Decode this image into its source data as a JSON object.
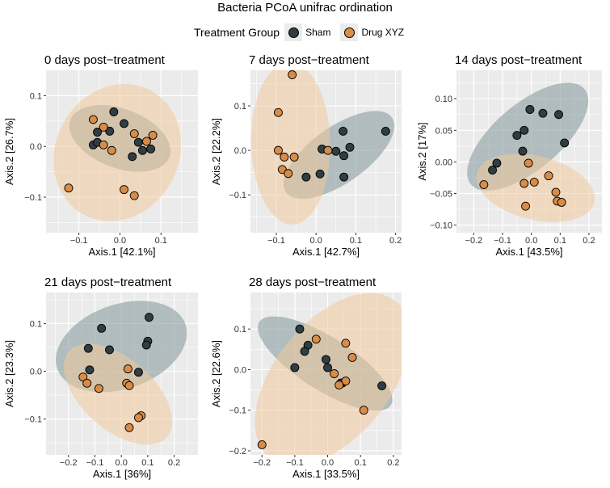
{
  "figure_title": "Bacteria PCoA unifrac ordination",
  "legend": {
    "title": "Treatment Group",
    "entries": [
      {
        "label": "Sham",
        "color": "#2f3e42"
      },
      {
        "label": "Drug XYZ",
        "color": "#d98c46"
      }
    ]
  },
  "colors": {
    "panel_background": "#ebebeb",
    "grid": "#ffffff",
    "sham_fill": "#2f3e42",
    "drug_fill": "#d98c46",
    "sham_ellipse": "#7f9697",
    "drug_ellipse": "#f0c89c"
  },
  "chart_data": [
    {
      "type": "scatter",
      "title": "0 days post−treatment",
      "xlabel": "Axis.1   [42.1%]",
      "ylabel": "Axis.2   [26.7%]",
      "xlim": [
        -0.18,
        0.19
      ],
      "ylim": [
        -0.17,
        0.15
      ],
      "xticks": [
        -0.1,
        0.0,
        0.1
      ],
      "xtick_labels": [
        "−0.1",
        "0.0",
        "0.1"
      ],
      "yticks": [
        -0.1,
        0.0,
        0.1
      ],
      "ytick_labels": [
        "−0.1",
        "0.0",
        "0.1"
      ],
      "grid": true,
      "series": [
        {
          "name": "Sham",
          "points": [
            [
              -0.015,
              0.068
            ],
            [
              0.01,
              0.045
            ],
            [
              -0.055,
              0.028
            ],
            [
              -0.025,
              0.03
            ],
            [
              -0.065,
              0.003
            ],
            [
              -0.055,
              0.008
            ],
            [
              0.045,
              0.008
            ],
            [
              0.03,
              -0.02
            ],
            [
              0.055,
              -0.008
            ],
            [
              0.075,
              -0.005
            ]
          ]
        },
        {
          "name": "Drug XYZ",
          "points": [
            [
              -0.065,
              0.053
            ],
            [
              -0.04,
              0.038
            ],
            [
              -0.04,
              0.003
            ],
            [
              -0.02,
              -0.008
            ],
            [
              0.035,
              0.025
            ],
            [
              0.065,
              0.01
            ],
            [
              0.08,
              0.022
            ],
            [
              -0.125,
              -0.082
            ],
            [
              0.01,
              -0.085
            ],
            [
              0.035,
              -0.097
            ]
          ]
        }
      ]
    },
    {
      "type": "scatter",
      "title": "7 days post−treatment",
      "xlabel": "Axis.1   [42.7%]",
      "ylabel": "Axis.2   [22.2%]",
      "xlim": [
        -0.165,
        0.215
      ],
      "ylim": [
        -0.185,
        0.18
      ],
      "xticks": [
        -0.1,
        0.0,
        0.1,
        0.2
      ],
      "xtick_labels": [
        "−0.1",
        "0.0",
        "0.1",
        "0.2"
      ],
      "yticks": [
        -0.1,
        0.0,
        0.1
      ],
      "ytick_labels": [
        "−0.1",
        "0.0",
        "0.1"
      ],
      "grid": true,
      "series": [
        {
          "name": "Sham",
          "points": [
            [
              0.068,
              0.043
            ],
            [
              0.175,
              0.043
            ],
            [
              0.015,
              0.003
            ],
            [
              0.05,
              -0.002
            ],
            [
              0.085,
              0.007
            ],
            [
              0.07,
              -0.012
            ],
            [
              0.01,
              -0.053
            ],
            [
              -0.025,
              -0.06
            ],
            [
              0.07,
              -0.06
            ]
          ]
        },
        {
          "name": "Drug XYZ",
          "points": [
            [
              -0.06,
              0.17
            ],
            [
              -0.095,
              0.085
            ],
            [
              -0.095,
              0.0
            ],
            [
              -0.08,
              -0.015
            ],
            [
              -0.055,
              -0.015
            ],
            [
              -0.085,
              -0.043
            ],
            [
              -0.07,
              -0.052
            ],
            [
              0.03,
              0.0
            ]
          ]
        }
      ]
    },
    {
      "type": "scatter",
      "title": "14 days post−treatment",
      "xlabel": "Axis.1   [43.5%]",
      "ylabel": "Axis.2   [17%]",
      "xlim": [
        -0.26,
        0.245
      ],
      "ylim": [
        -0.112,
        0.145
      ],
      "xticks": [
        -0.2,
        -0.1,
        0.0,
        0.1,
        0.2
      ],
      "xtick_labels": [
        "−0.2",
        "−0.1",
        "0.0",
        "0.1",
        "0.2"
      ],
      "yticks": [
        -0.1,
        -0.05,
        0.0,
        0.05,
        0.1
      ],
      "ytick_labels": [
        "−0.10",
        "−0.05",
        "0.00",
        "0.05",
        "0.10"
      ],
      "grid": true,
      "series": [
        {
          "name": "Sham",
          "points": [
            [
              -0.005,
              0.083
            ],
            [
              0.04,
              0.077
            ],
            [
              0.095,
              0.075
            ],
            [
              -0.025,
              0.05
            ],
            [
              -0.05,
              0.042
            ],
            [
              0.115,
              0.03
            ],
            [
              -0.03,
              0.017
            ],
            [
              -0.12,
              -0.002
            ],
            [
              -0.135,
              -0.013
            ]
          ]
        },
        {
          "name": "Drug XYZ",
          "points": [
            [
              -0.01,
              -0.002
            ],
            [
              0.06,
              -0.022
            ],
            [
              -0.165,
              -0.036
            ],
            [
              -0.025,
              -0.034
            ],
            [
              0.01,
              -0.032
            ],
            [
              0.085,
              -0.048
            ],
            [
              -0.02,
              -0.07
            ],
            [
              0.09,
              -0.062
            ],
            [
              0.105,
              -0.064
            ]
          ]
        }
      ]
    },
    {
      "type": "scatter",
      "title": "21 days post−treatment",
      "xlabel": "Axis.1   [36%]",
      "ylabel": "Axis.2   [23.3%]",
      "xlim": [
        -0.285,
        0.29
      ],
      "ylim": [
        -0.175,
        0.165
      ],
      "xticks": [
        -0.2,
        -0.1,
        0.0,
        0.1,
        0.2
      ],
      "xtick_labels": [
        "−0.2",
        "−0.1",
        "0.0",
        "0.1",
        "0.2"
      ],
      "yticks": [
        -0.1,
        0.0,
        0.1
      ],
      "ytick_labels": [
        "−0.1",
        "0.0",
        "0.1"
      ],
      "grid": true,
      "series": [
        {
          "name": "Sham",
          "points": [
            [
              0.105,
              0.113
            ],
            [
              -0.075,
              0.09
            ],
            [
              0.1,
              0.063
            ],
            [
              0.095,
              0.055
            ],
            [
              -0.125,
              0.048
            ],
            [
              -0.045,
              0.045
            ],
            [
              -0.12,
              0.003
            ],
            [
              0.065,
              -0.002
            ]
          ]
        },
        {
          "name": "Drug XYZ",
          "points": [
            [
              0.025,
              0.005
            ],
            [
              -0.145,
              -0.012
            ],
            [
              -0.13,
              -0.025
            ],
            [
              0.02,
              -0.025
            ],
            [
              0.03,
              -0.03
            ],
            [
              -0.085,
              -0.036
            ],
            [
              0.075,
              -0.093
            ],
            [
              0.065,
              -0.097
            ],
            [
              0.03,
              -0.118
            ]
          ]
        }
      ]
    },
    {
      "type": "scatter",
      "title": "28 days post−treatment",
      "xlabel": "Axis.1   [33.5%]",
      "ylabel": "Axis.2   [22.6%]",
      "xlim": [
        -0.235,
        0.225
      ],
      "ylim": [
        -0.21,
        0.19
      ],
      "xticks": [
        -0.2,
        -0.1,
        0.0,
        0.1,
        0.2
      ],
      "xtick_labels": [
        "−0.2",
        "−0.1",
        "0.0",
        "0.1",
        "0.2"
      ],
      "yticks": [
        -0.2,
        -0.1,
        0.0,
        0.1
      ],
      "ytick_labels": [
        "−0.2",
        "−0.1",
        "0.0",
        "0.1"
      ],
      "grid": true,
      "series": [
        {
          "name": "Sham",
          "points": [
            [
              -0.085,
              0.1
            ],
            [
              -0.06,
              0.06
            ],
            [
              -0.07,
              0.045
            ],
            [
              -0.005,
              0.025
            ],
            [
              0.0,
              0.005
            ],
            [
              -0.1,
              0.005
            ],
            [
              0.045,
              -0.033
            ],
            [
              0.04,
              -0.033
            ],
            [
              0.165,
              -0.04
            ]
          ]
        },
        {
          "name": "Drug XYZ",
          "points": [
            [
              -0.035,
              0.075
            ],
            [
              0.055,
              0.065
            ],
            [
              0.075,
              0.03
            ],
            [
              0.02,
              -0.01
            ],
            [
              0.055,
              -0.028
            ],
            [
              0.035,
              -0.038
            ],
            [
              0.11,
              -0.1
            ],
            [
              -0.2,
              -0.185
            ]
          ]
        }
      ]
    }
  ]
}
